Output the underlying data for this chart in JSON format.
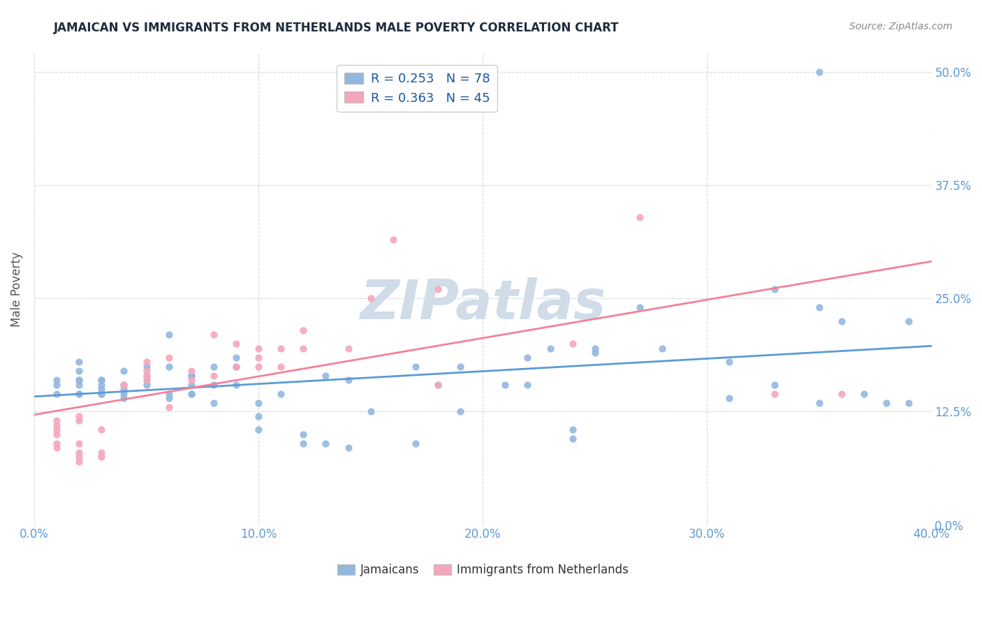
{
  "title": "JAMAICAN VS IMMIGRANTS FROM NETHERLANDS MALE POVERTY CORRELATION CHART",
  "source": "Source: ZipAtlas.com",
  "xlabel_ticks": [
    "0.0%",
    "10.0%",
    "20.0%",
    "30.0%",
    "40.0%"
  ],
  "xlabel_tick_vals": [
    0.0,
    0.1,
    0.2,
    0.3,
    0.4
  ],
  "ylabel_ticks": [
    "0.0%",
    "12.5%",
    "25.0%",
    "37.5%",
    "50.0%"
  ],
  "ylabel_tick_vals": [
    0.0,
    0.125,
    0.25,
    0.375,
    0.5
  ],
  "ylabel": "Male Poverty",
  "xlim": [
    0.0,
    0.4
  ],
  "ylim": [
    0.0,
    0.52
  ],
  "blue_R": 0.253,
  "blue_N": 78,
  "pink_R": 0.363,
  "pink_N": 45,
  "legend_labels": [
    "Jamaicans",
    "Immigrants from Netherlands"
  ],
  "blue_color": "#92b8e0",
  "pink_color": "#f4a7bb",
  "blue_line_color": "#5b9bd5",
  "pink_line_color": "#f48098",
  "title_color": "#1f2d3d",
  "source_color": "#888888",
  "axis_label_color": "#5b9bd5",
  "legend_R_N_color": "#1a56a0",
  "watermark_color": "#d0dce8",
  "grid_color": "#d0d8e0",
  "blue_x": [
    0.01,
    0.01,
    0.01,
    0.02,
    0.02,
    0.02,
    0.02,
    0.02,
    0.02,
    0.02,
    0.03,
    0.03,
    0.03,
    0.03,
    0.03,
    0.03,
    0.04,
    0.04,
    0.04,
    0.04,
    0.04,
    0.05,
    0.05,
    0.05,
    0.05,
    0.06,
    0.06,
    0.06,
    0.06,
    0.07,
    0.07,
    0.07,
    0.07,
    0.07,
    0.08,
    0.08,
    0.08,
    0.09,
    0.09,
    0.09,
    0.1,
    0.1,
    0.1,
    0.11,
    0.12,
    0.12,
    0.13,
    0.13,
    0.14,
    0.14,
    0.15,
    0.17,
    0.17,
    0.18,
    0.19,
    0.19,
    0.21,
    0.22,
    0.22,
    0.23,
    0.24,
    0.24,
    0.25,
    0.25,
    0.27,
    0.28,
    0.31,
    0.31,
    0.33,
    0.35,
    0.35,
    0.36,
    0.37,
    0.38,
    0.39,
    0.39,
    0.35,
    0.33
  ],
  "blue_y": [
    0.155,
    0.145,
    0.16,
    0.16,
    0.145,
    0.17,
    0.155,
    0.145,
    0.16,
    0.18,
    0.155,
    0.16,
    0.145,
    0.16,
    0.15,
    0.145,
    0.15,
    0.155,
    0.145,
    0.14,
    0.17,
    0.155,
    0.175,
    0.165,
    0.16,
    0.14,
    0.145,
    0.175,
    0.21,
    0.165,
    0.165,
    0.155,
    0.145,
    0.145,
    0.175,
    0.155,
    0.135,
    0.185,
    0.175,
    0.155,
    0.135,
    0.12,
    0.105,
    0.145,
    0.09,
    0.1,
    0.165,
    0.09,
    0.085,
    0.16,
    0.125,
    0.175,
    0.09,
    0.155,
    0.175,
    0.125,
    0.155,
    0.155,
    0.185,
    0.195,
    0.105,
    0.095,
    0.195,
    0.19,
    0.24,
    0.195,
    0.14,
    0.18,
    0.155,
    0.24,
    0.135,
    0.225,
    0.145,
    0.135,
    0.225,
    0.135,
    0.5,
    0.26
  ],
  "pink_x": [
    0.01,
    0.01,
    0.01,
    0.01,
    0.01,
    0.01,
    0.02,
    0.02,
    0.02,
    0.02,
    0.02,
    0.02,
    0.03,
    0.03,
    0.03,
    0.04,
    0.04,
    0.05,
    0.05,
    0.05,
    0.05,
    0.06,
    0.06,
    0.07,
    0.07,
    0.08,
    0.08,
    0.09,
    0.09,
    0.1,
    0.1,
    0.1,
    0.11,
    0.11,
    0.12,
    0.12,
    0.14,
    0.15,
    0.16,
    0.18,
    0.18,
    0.24,
    0.27,
    0.33,
    0.36
  ],
  "pink_y": [
    0.11,
    0.115,
    0.1,
    0.105,
    0.09,
    0.085,
    0.12,
    0.115,
    0.09,
    0.08,
    0.075,
    0.07,
    0.105,
    0.08,
    0.075,
    0.155,
    0.155,
    0.16,
    0.165,
    0.18,
    0.17,
    0.13,
    0.185,
    0.16,
    0.17,
    0.21,
    0.165,
    0.2,
    0.175,
    0.185,
    0.175,
    0.195,
    0.175,
    0.195,
    0.215,
    0.195,
    0.195,
    0.25,
    0.315,
    0.155,
    0.26,
    0.2,
    0.34,
    0.145,
    0.145
  ]
}
